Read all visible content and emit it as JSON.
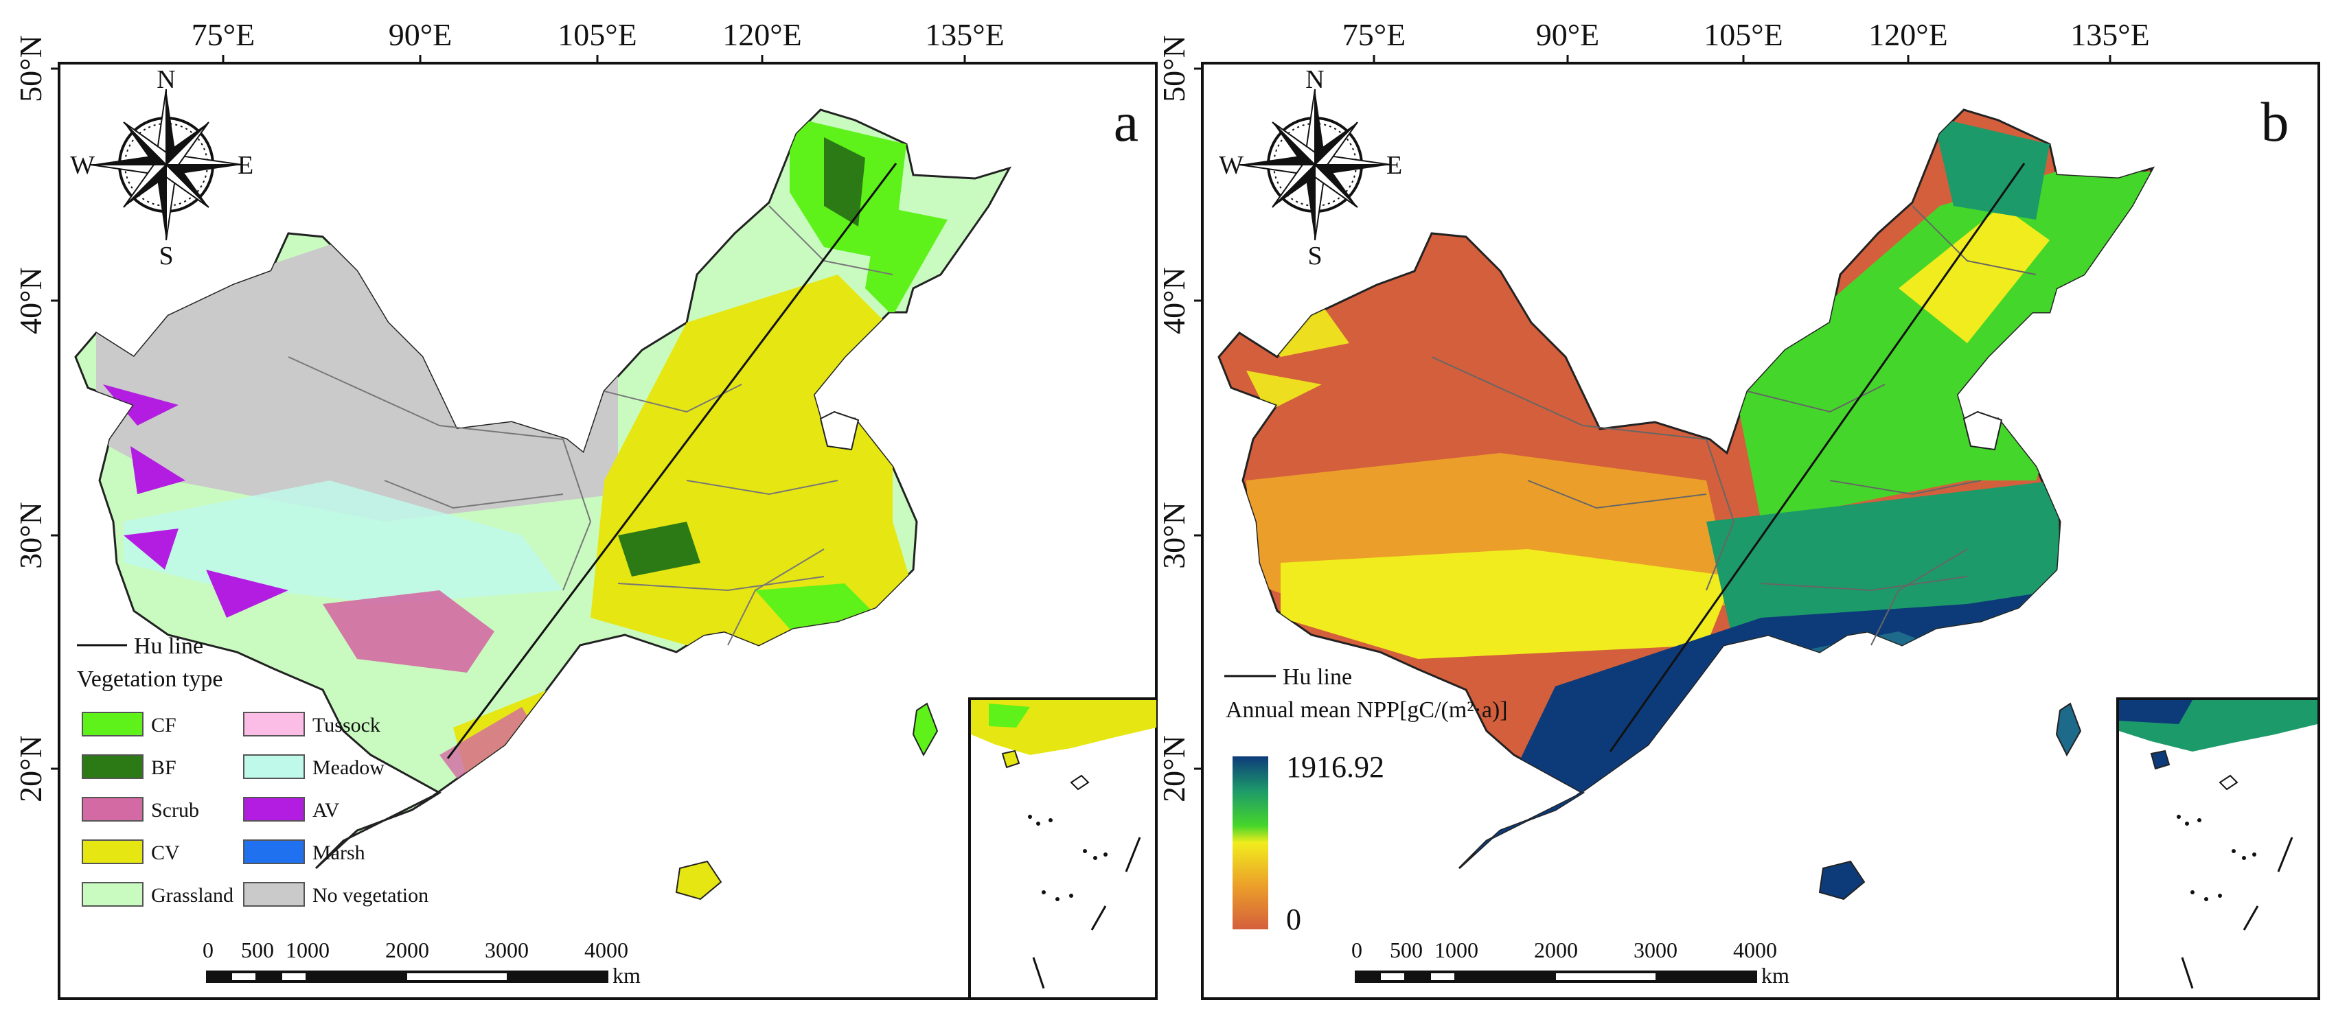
{
  "colors": {
    "cf": "#5ef21a",
    "bf": "#2c7a16",
    "scrub": "#d36aa3",
    "cv": "#e6e612",
    "grassland": "#c9fbc1",
    "tussock": "#fbbde6",
    "meadow": "#bff9ea",
    "av": "#b31de1",
    "marsh": "#1f71f0",
    "novegetation": "#cacaca",
    "npp_high": "#0d3b7a",
    "npp_mid": "#45d62b",
    "npp_yellow": "#f1ec1d",
    "npp_low": "#d45f3c"
  },
  "panels": [
    {
      "letter": "a",
      "top_ticks": [
        "75°E",
        "90°E",
        "105°E",
        "120°E",
        "135°E"
      ],
      "left_ticks": [
        "50°N",
        "40°N",
        "30°N",
        "20°N"
      ],
      "compass": {
        "n": "N",
        "s": "S",
        "e": "E",
        "w": "W"
      },
      "hu_line_label": "Hu line",
      "legend_title": "Vegetation type",
      "legend_items": [
        {
          "label": "CF",
          "color": "#5ef21a"
        },
        {
          "label": "BF",
          "color": "#2c7a16"
        },
        {
          "label": "Scrub",
          "color": "#d36aa3"
        },
        {
          "label": "CV",
          "color": "#e6e612"
        },
        {
          "label": "Grassland",
          "color": "#c9fbc1"
        },
        {
          "label": "Tussock",
          "color": "#fbbde6"
        },
        {
          "label": "Meadow",
          "color": "#bff9ea"
        },
        {
          "label": "AV",
          "color": "#b31de1"
        },
        {
          "label": "Marsh",
          "color": "#1f71f0"
        },
        {
          "label": "No vegetation",
          "color": "#cacaca"
        }
      ],
      "scale_ticks": [
        "0",
        "500",
        "1000",
        "2000",
        "3000",
        "4000"
      ],
      "scale_unit": "km"
    },
    {
      "letter": "b",
      "top_ticks": [
        "75°E",
        "90°E",
        "105°E",
        "120°E",
        "135°E"
      ],
      "left_ticks": [
        "50°N",
        "40°N",
        "30°N",
        "20°N"
      ],
      "compass": {
        "n": "N",
        "s": "S",
        "e": "E",
        "w": "W"
      },
      "hu_line_label": "Hu line",
      "legend_title": "Annual mean NPP[gC/(m²·a)]",
      "colorbar_max": "1916.92",
      "colorbar_min": "0",
      "scale_ticks": [
        "0",
        "500",
        "1000",
        "2000",
        "3000",
        "4000"
      ],
      "scale_unit": "km"
    }
  ]
}
